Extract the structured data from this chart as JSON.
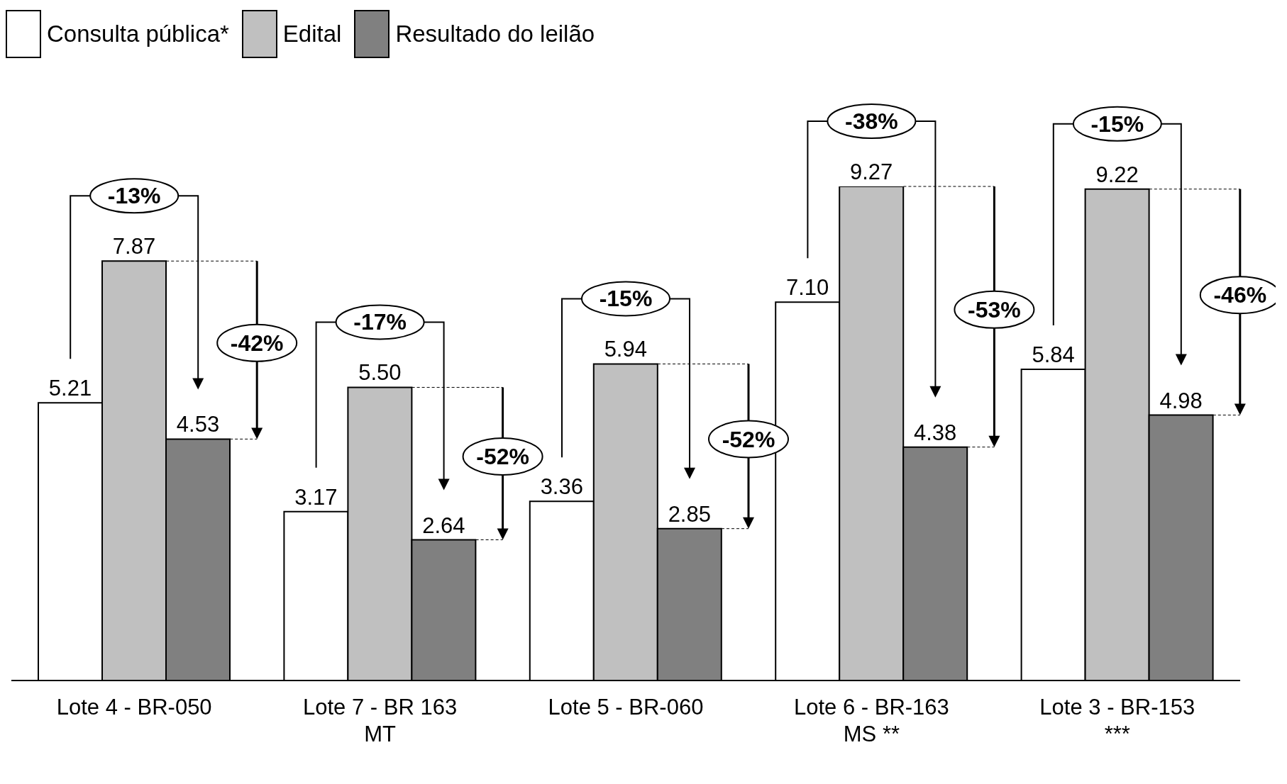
{
  "chart_data": {
    "type": "bar",
    "categories": [
      "Lote 4 - BR-050",
      "Lote 7 - BR 163 MT",
      "Lote 5 - BR-060",
      "Lote 6 - BR-163 MS **",
      "Lote 3 - BR-153 ***"
    ],
    "series": [
      {
        "name": "Consulta pública*",
        "color": "#ffffff",
        "values": [
          5.21,
          3.17,
          3.36,
          7.1,
          5.84
        ],
        "value_labels": [
          "5.21",
          "3.17",
          "3.36",
          "7.10",
          "5.84"
        ]
      },
      {
        "name": "Edital",
        "color": "#c0c0c0",
        "values": [
          7.87,
          5.5,
          5.94,
          9.27,
          9.22
        ],
        "value_labels": [
          "7.87",
          "5.50",
          "5.94",
          "9.27",
          "9.22"
        ]
      },
      {
        "name": "Resultado do leilão",
        "color": "#808080",
        "values": [
          4.53,
          2.64,
          2.85,
          4.38,
          4.98
        ],
        "value_labels": [
          "4.53",
          "2.64",
          "2.85",
          "4.38",
          "4.98"
        ]
      }
    ],
    "legend": "top left",
    "annotations": [
      "-13%",
      "-42%",
      "-17%",
      "-52%",
      "-15%",
      "-52%",
      "-38%",
      "-53%",
      "-15%",
      "-46%"
    ]
  }
}
